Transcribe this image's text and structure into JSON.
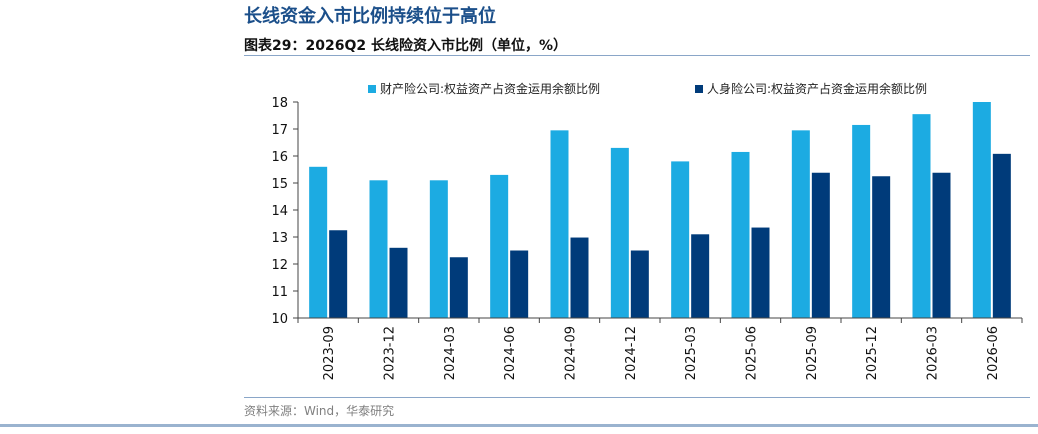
{
  "header": {
    "title": "长线资金入市比例持续位于高位",
    "figure_title": "图表29：2026Q2 长线险资入市比例（单位，%）"
  },
  "source": "资料来源：Wind，华泰研究",
  "colors": {
    "series_1": "#1cabe2",
    "series_2": "#003b7a",
    "title": "#1b4f8a",
    "rule": "#8aa6c8"
  },
  "chart_data": {
    "type": "bar",
    "title": "",
    "xlabel": "",
    "ylabel": "",
    "ylim": [
      10,
      18
    ],
    "yticks": [
      10,
      11,
      12,
      13,
      14,
      15,
      16,
      17,
      18
    ],
    "grid": false,
    "legend_position": "top",
    "categories": [
      "2023-09",
      "2023-12",
      "2024-03",
      "2024-06",
      "2024-09",
      "2024-12",
      "2025-03",
      "2025-06",
      "2025-09",
      "2025-12",
      "2026-03",
      "2026-06"
    ],
    "series": [
      {
        "name": "财产险公司:权益资产占资金运用余额比例",
        "values": [
          15.6,
          15.1,
          15.1,
          15.3,
          16.95,
          16.3,
          15.8,
          16.15,
          16.95,
          17.15,
          17.55,
          18.0
        ]
      },
      {
        "name": "人身险公司:权益资产占资金运用余额比例",
        "values": [
          13.25,
          12.6,
          12.25,
          12.5,
          12.98,
          12.5,
          13.1,
          13.35,
          15.38,
          15.25,
          15.38,
          16.08
        ]
      }
    ]
  }
}
